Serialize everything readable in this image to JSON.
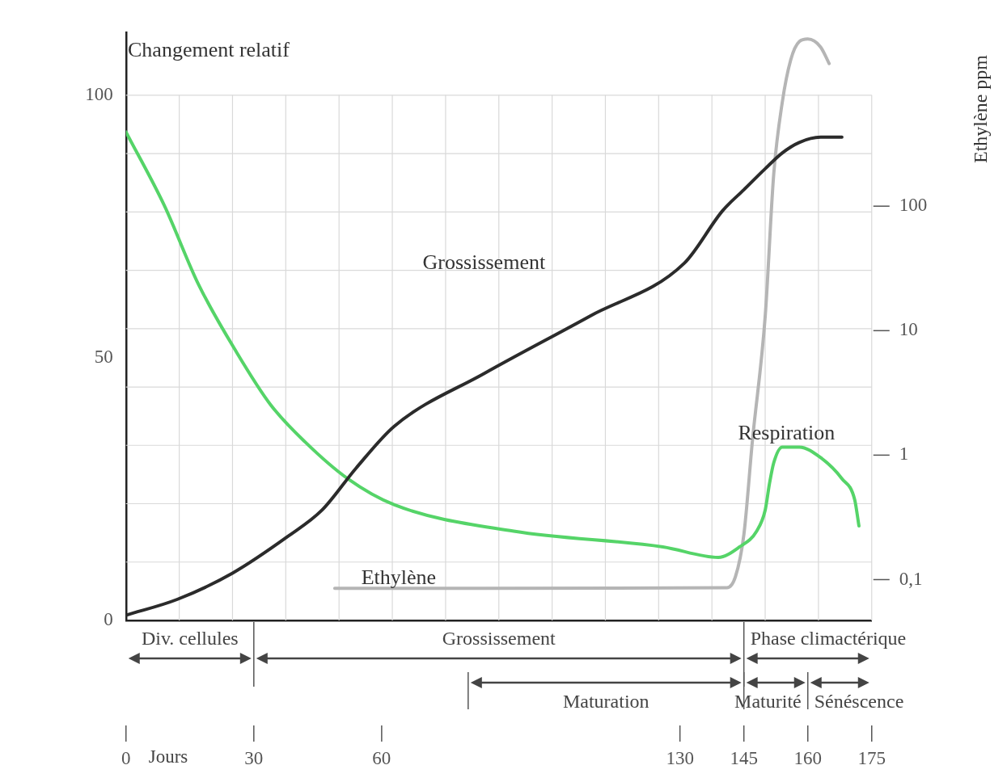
{
  "chart_data": {
    "type": "line",
    "ylabel": "Changement relatif",
    "y2label": "Ethylène ppm",
    "xlabel": "Jours",
    "xlim": [
      0,
      175
    ],
    "xticks": [
      0,
      30,
      60,
      130,
      145,
      160,
      175
    ],
    "ylim": [
      0,
      112
    ],
    "yticks": [
      0,
      50,
      100
    ],
    "y2lim": [
      0.047,
      2500
    ],
    "y2ticks": [
      {
        "value": 0.1,
        "label": "0,1"
      },
      1,
      10,
      100
    ],
    "log": "y2",
    "grid": true,
    "legend": false,
    "marker": "none",
    "line_style": "solid",
    "series": [
      {
        "name": "Grossissement",
        "color": "#2b2b2b",
        "x": [
          0,
          12,
          25,
          38,
          46,
          54,
          63,
          84,
          109,
          131,
          140,
          145,
          150,
          154,
          158,
          163,
          168
        ],
        "values": [
          1,
          4,
          9,
          16,
          21,
          29,
          37,
          47,
          58,
          68,
          78,
          82,
          86,
          89,
          91,
          92,
          92
        ]
      },
      {
        "name": "Respiration",
        "color": "#55d468",
        "x": [
          0,
          9,
          17,
          26,
          34,
          42,
          52,
          63,
          91,
          126,
          139,
          144,
          148,
          150,
          151,
          152,
          154,
          158,
          163,
          168,
          171,
          172
        ],
        "values": [
          93,
          79,
          64,
          51,
          41,
          34,
          27,
          22,
          17,
          14,
          12,
          14,
          17,
          21,
          26,
          30,
          33,
          33,
          31,
          27,
          23,
          18
        ]
      },
      {
        "name": "Ethylène",
        "color": "#b5b5b5",
        "axis": "y2",
        "x": [
          49,
          141,
          143,
          145,
          147,
          150,
          152,
          154,
          156,
          158,
          160,
          163,
          165
        ],
        "values": [
          0.085,
          0.086,
          0.105,
          0.23,
          1.3,
          13,
          180,
          680,
          1500,
          2100,
          2200,
          1900,
          1400
        ]
      }
    ],
    "annotations": [
      "Div. cellules",
      "Grossissement",
      "Phase climactérique",
      "Maturation",
      "Maturité",
      "Sénéscence"
    ]
  }
}
